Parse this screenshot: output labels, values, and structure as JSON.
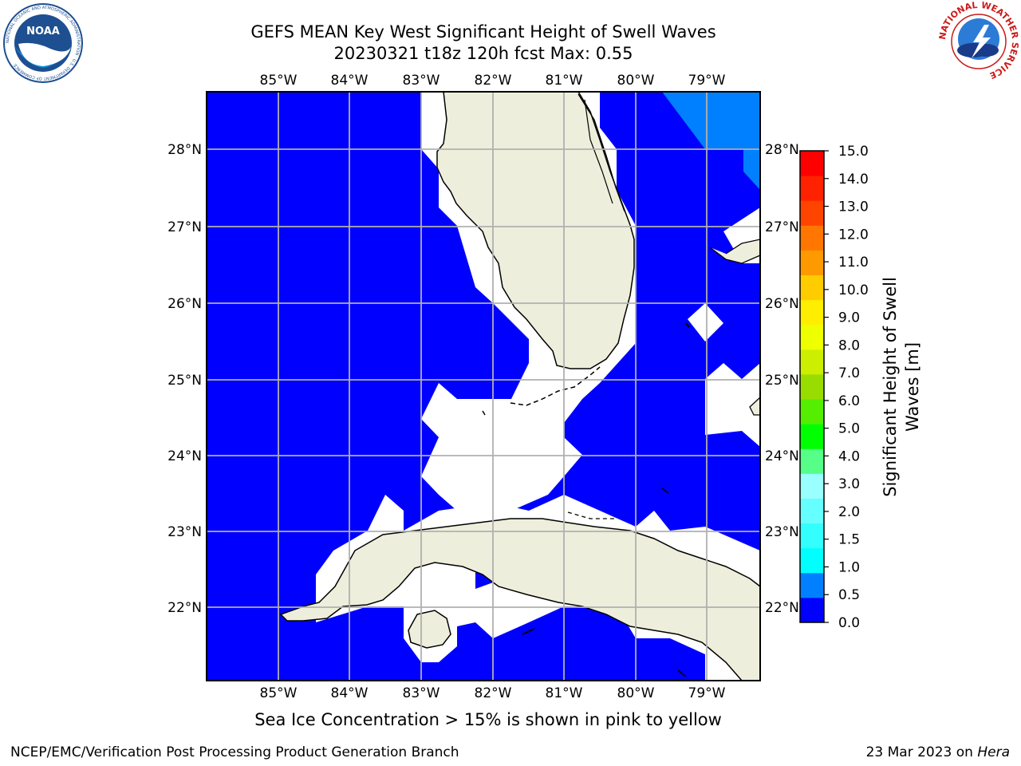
{
  "title": {
    "line1": "GEFS MEAN Key West Significant Height of Swell Waves",
    "line2": "20230321 t18z 120h fcst   Max: 0.55"
  },
  "map": {
    "lon_labels": [
      "85°W",
      "84°W",
      "83°W",
      "82°W",
      "81°W",
      "80°W",
      "79°W"
    ],
    "lat_labels": [
      "28°N",
      "27°N",
      "26°N",
      "25°N",
      "24°N",
      "23°N",
      "22°N"
    ],
    "colors": {
      "ocean_low": "#0000ff",
      "ocean_mid": "#0080ff",
      "land": "#eeeedc",
      "grid": "#b0b0b0"
    }
  },
  "colorbar": {
    "ticks": [
      "0.0",
      "0.5",
      "1.0",
      "1.5",
      "2.0",
      "3.0",
      "4.0",
      "5.0",
      "6.0",
      "7.0",
      "8.0",
      "9.0",
      "10.0",
      "11.0",
      "12.0",
      "13.0",
      "14.0",
      "15.0"
    ],
    "colors": [
      "#0000ff",
      "#0080ff",
      "#00ffff",
      "#33ffff",
      "#66ffff",
      "#99ffff",
      "#55ff88",
      "#00ff00",
      "#55ee00",
      "#99dd00",
      "#ccee00",
      "#eeff00",
      "#ffee00",
      "#ffcc00",
      "#ff9900",
      "#ff7700",
      "#ff4400",
      "#ff2200",
      "#ff0000"
    ],
    "label_line1": "Significant Height of Swell",
    "label_line2": "Waves [m]"
  },
  "note": "Sea Ice Concentration > 15% is shown in pink to yellow",
  "footer": {
    "left": "NCEP/EMC/Verification Post Processing Product Generation Branch",
    "date": "23 Mar 2023 on ",
    "host": "Hera"
  },
  "logos": {
    "noaa_text": "NOAA",
    "noaa_ring": "NATIONAL OCEANIC AND ATMOSPHERIC ADMINISTRATION · U.S. DEPARTMENT OF COMMERCE",
    "nws_ring": "NATIONAL WEATHER SERVICE"
  }
}
